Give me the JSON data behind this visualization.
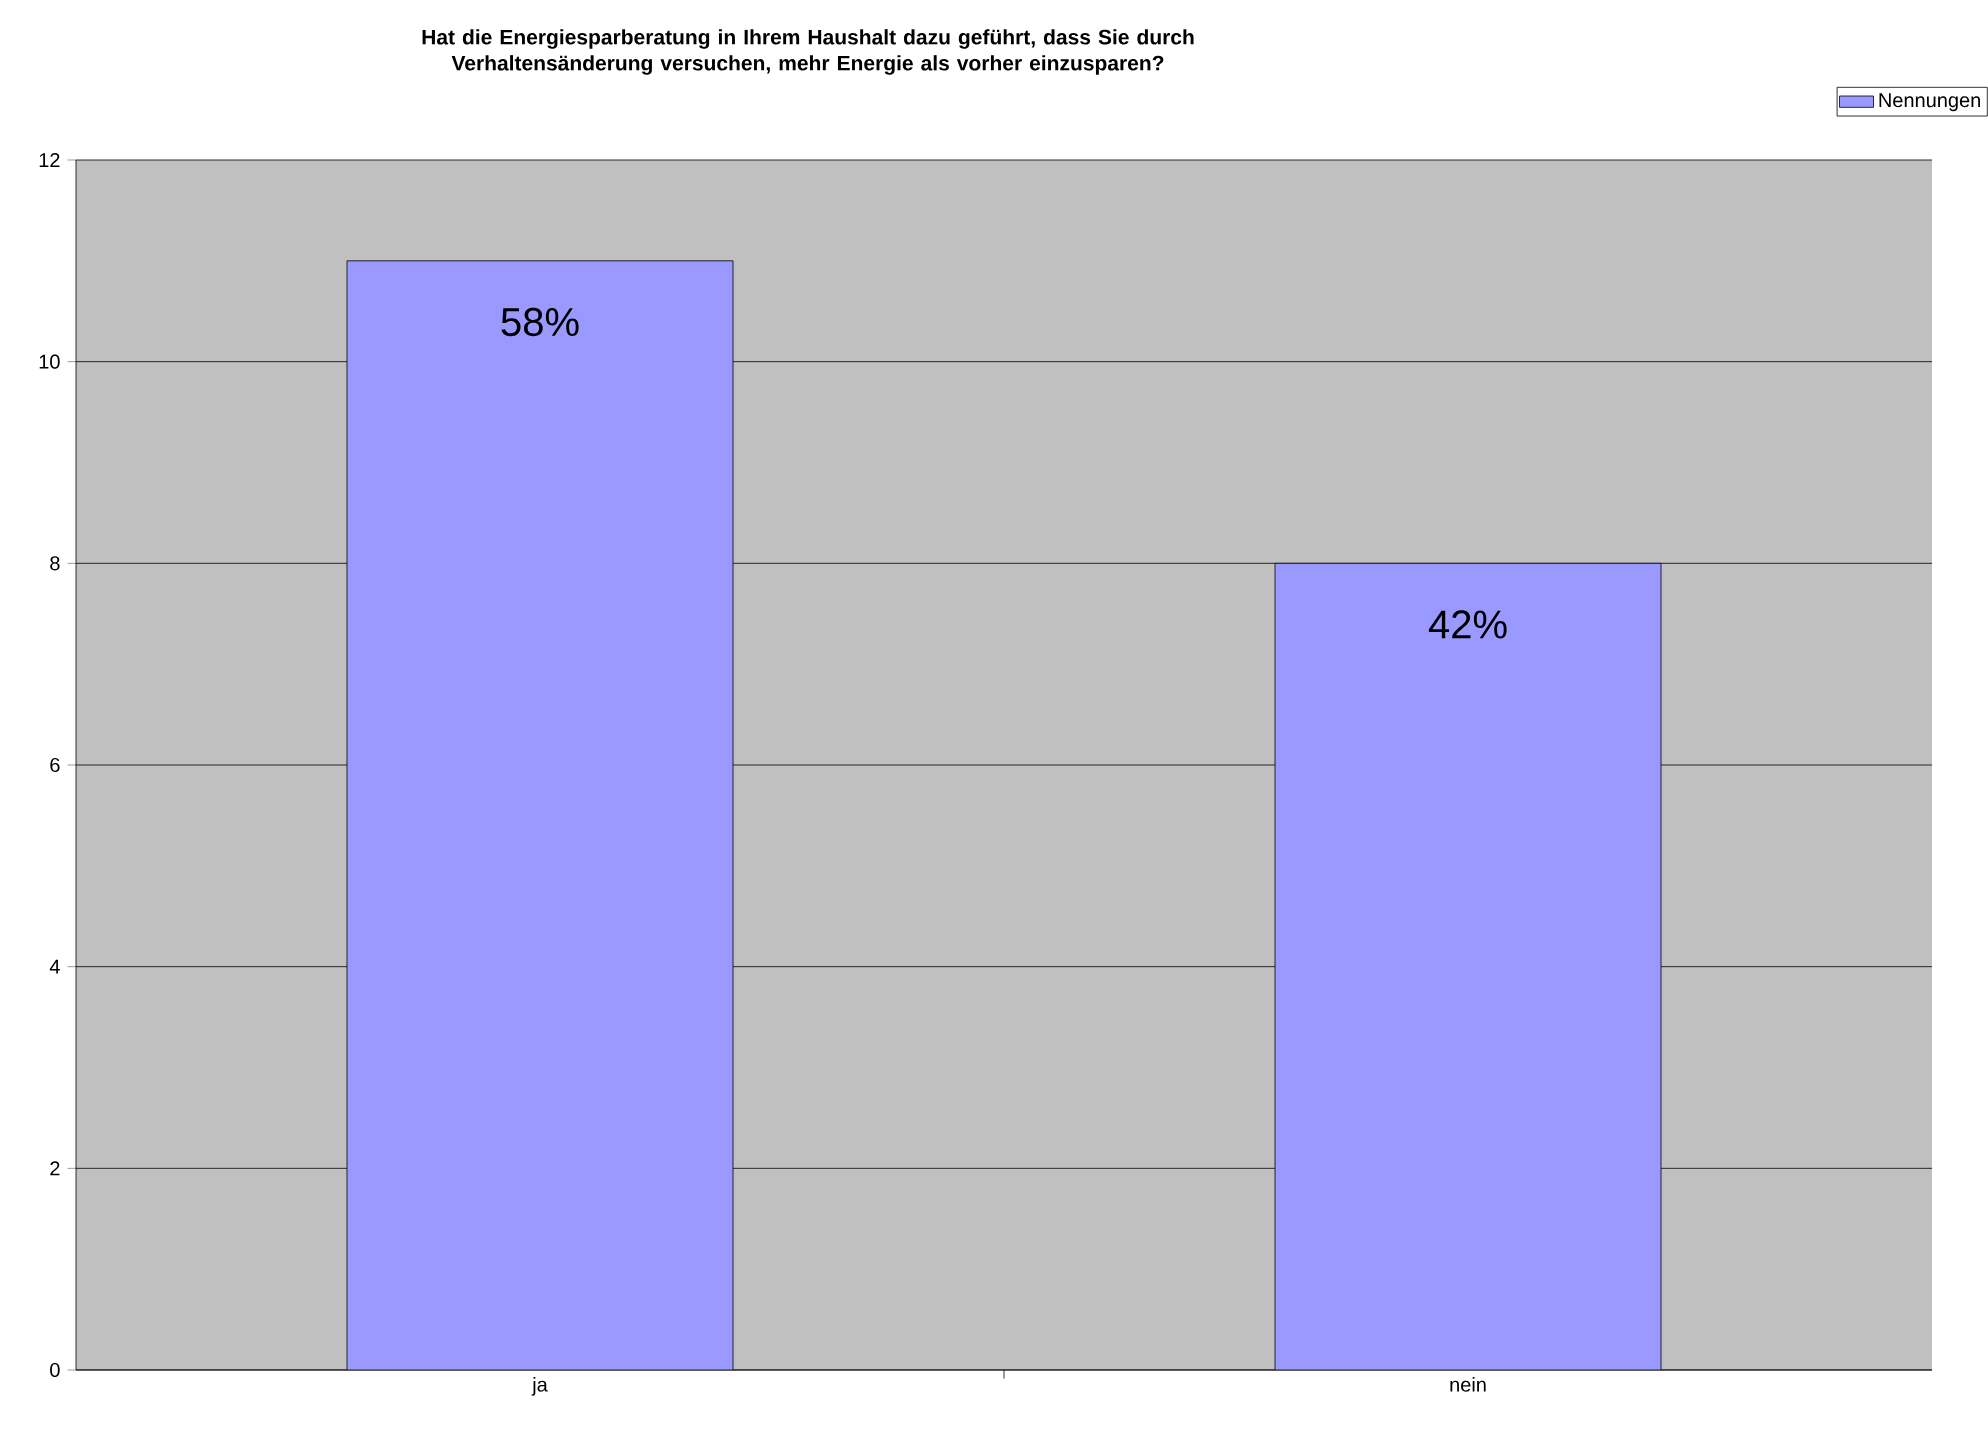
{
  "chart_data": {
    "type": "bar",
    "title": "Hat die Energiesparberatung in Ihrem Haushalt dazu geführt, dass Sie durch Verhaltensänderung versuchen, mehr Energie als vorher einzusparen?",
    "categories": [
      "ja",
      "nein"
    ],
    "series": [
      {
        "name": "Nennungen",
        "color": "#9999ff",
        "values": [
          11,
          8
        ]
      }
    ],
    "annotations": [
      {
        "text": "58%",
        "x": "ja",
        "y": 11
      },
      {
        "text": "42%",
        "x": "nein",
        "y": 8
      }
    ],
    "ylim": [
      0,
      12
    ],
    "yticks": [
      0,
      2,
      4,
      6,
      8,
      10,
      12
    ],
    "grid": "y",
    "legend": "top right"
  }
}
